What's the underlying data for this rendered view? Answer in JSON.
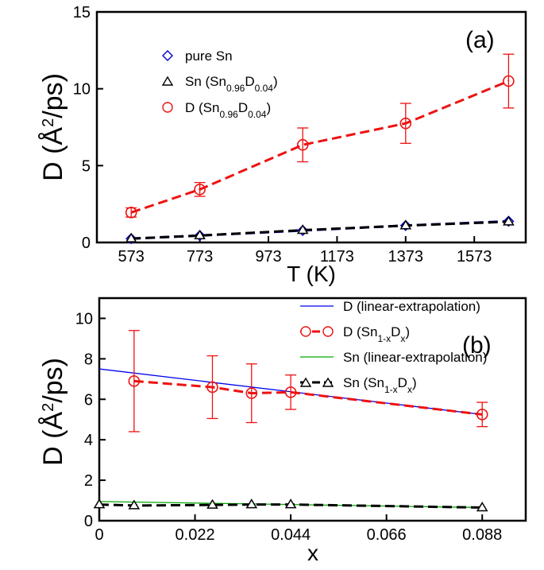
{
  "chart_data": [
    {
      "type": "line",
      "panel_label": "(a)",
      "ylabel": {
        "main": "D (",
        "A": "Å",
        "sup": "2",
        "rest": "/ps)"
      },
      "xlabel": "T (K)",
      "xlim": [
        473,
        1723
      ],
      "ylim": [
        0,
        15
      ],
      "xticks": [
        573,
        773,
        973,
        1173,
        1373,
        1573
      ],
      "yticks": [
        0,
        5,
        10,
        15
      ],
      "legend_position": "upper-left",
      "series": [
        {
          "key": "pure-sn",
          "name": {
            "main": "pure Sn"
          },
          "color": "#0000cc",
          "marker": "diamond",
          "line": "dashed",
          "x": [
            573,
            773,
            1073,
            1373,
            1673
          ],
          "y": [
            0.25,
            0.45,
            0.78,
            1.1,
            1.38
          ]
        },
        {
          "key": "sn-in-alloy",
          "name": {
            "main": "Sn (Sn",
            "s1": "0.96",
            "mid": "D",
            "s2": "0.04",
            "end": ")"
          },
          "color": "#000000",
          "marker": "triangle",
          "line": "dashed",
          "x": [
            573,
            773,
            1073,
            1373,
            1673
          ],
          "y": [
            0.25,
            0.45,
            0.8,
            1.1,
            1.35
          ]
        },
        {
          "key": "d-in-alloy",
          "name": {
            "main": "D (Sn",
            "s1": "0.96",
            "mid": "D",
            "s2": "0.04",
            "end": ")"
          },
          "color": "#ee1111",
          "marker": "circle",
          "line": "dashed",
          "x": [
            573,
            773,
            1073,
            1373,
            1673
          ],
          "y": [
            1.95,
            3.45,
            6.35,
            7.75,
            10.5
          ],
          "err": [
            0.3,
            0.45,
            1.1,
            1.3,
            1.75
          ]
        }
      ]
    },
    {
      "type": "line",
      "panel_label": "(b)",
      "ylabel": {
        "main": "D (",
        "A": "Å",
        "sup": "2",
        "rest": "/ps)"
      },
      "xlabel": "x",
      "xlim": [
        0,
        0.098
      ],
      "ylim": [
        0,
        11
      ],
      "xticks": [
        "0",
        "0.022",
        "0.044",
        "0.066",
        "0.088"
      ],
      "xtick_values": [
        0,
        0.022,
        0.044,
        0.066,
        0.088
      ],
      "yticks": [
        0,
        2,
        4,
        6,
        8,
        10
      ],
      "legend_position": "upper-right",
      "series": [
        {
          "key": "d-linear",
          "name": {
            "main": "D (linear-extrapolation)"
          },
          "color": "#0000ee",
          "marker": "none",
          "line": "solid",
          "x": [
            0,
            0.088
          ],
          "y": [
            7.5,
            5.25
          ]
        },
        {
          "key": "d-sim",
          "name": {
            "main": "D (Sn",
            "s1": "1-x",
            "mid": "D",
            "s2": "x",
            "end": ")"
          },
          "color": "#ee1111",
          "marker": "circle",
          "line": "dashed",
          "x": [
            0.008,
            0.026,
            0.035,
            0.044,
            0.088
          ],
          "y": [
            6.9,
            6.6,
            6.3,
            6.35,
            5.25
          ],
          "err": [
            2.5,
            1.55,
            1.45,
            0.85,
            0.6
          ]
        },
        {
          "key": "sn-linear",
          "name": {
            "main": "Sn (linear-extrapolation)"
          },
          "color": "#00aa00",
          "marker": "none",
          "line": "solid",
          "x": [
            0,
            0.088
          ],
          "y": [
            0.95,
            0.65
          ]
        },
        {
          "key": "sn-sim",
          "name": {
            "main": "Sn (Sn",
            "s1": "1-x",
            "mid": "D",
            "s2": "x",
            "end": ")"
          },
          "color": "#000000",
          "marker": "triangle",
          "line": "dashed",
          "x": [
            0,
            0.008,
            0.026,
            0.035,
            0.044,
            0.088
          ],
          "y": [
            0.8,
            0.75,
            0.78,
            0.8,
            0.8,
            0.65
          ]
        }
      ]
    }
  ]
}
